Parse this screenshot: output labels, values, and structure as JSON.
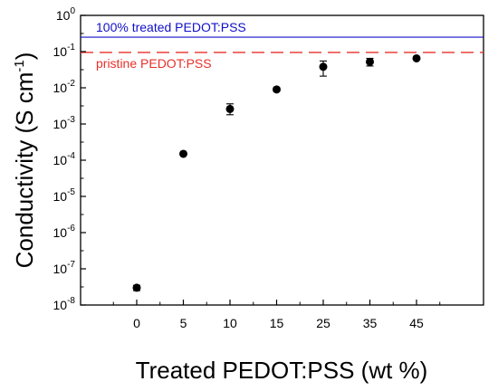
{
  "chart_data": {
    "type": "scatter",
    "title": "",
    "xlabel": "Treated PEDOT:PSS (wt %)",
    "ylabel": {
      "text": "Conductivity (S cm",
      "superscript": "-1",
      "close": ")"
    },
    "y_scale": "log",
    "ylim": [
      1e-08,
      1
    ],
    "categories": [
      "0",
      "5",
      "10",
      "15",
      "25",
      "35",
      "45"
    ],
    "series": [
      {
        "marker": "circle",
        "color": "#000000",
        "values": [
          3e-08,
          0.00015,
          0.0026,
          0.009,
          0.038,
          0.052,
          0.065
        ],
        "error_low": [
          2.5e-08,
          0.00014,
          0.0018,
          0.008,
          0.021,
          0.04,
          0.06
        ],
        "error_high": [
          3.5e-08,
          0.00016,
          0.0036,
          0.01,
          0.055,
          0.065,
          0.07
        ]
      }
    ],
    "reference_lines": [
      {
        "label": "100% treated PEDOT:PSS",
        "value": 0.25,
        "style": "solid",
        "color": "#1010c8"
      },
      {
        "label": "pristine PEDOT:PSS",
        "value": 0.095,
        "style": "dashed",
        "color": "#e8302a"
      }
    ],
    "y_ticks": [
      {
        "base": "10",
        "exp": "0",
        "value": 1
      },
      {
        "base": "10",
        "exp": "-1",
        "value": 0.1
      },
      {
        "base": "10",
        "exp": "-2",
        "value": 0.01
      },
      {
        "base": "10",
        "exp": "-3",
        "value": 0.001
      },
      {
        "base": "10",
        "exp": "-4",
        "value": 0.0001
      },
      {
        "base": "10",
        "exp": "-5",
        "value": 1e-05
      },
      {
        "base": "10",
        "exp": "-6",
        "value": 1e-06
      },
      {
        "base": "10",
        "exp": "-7",
        "value": 1e-07
      },
      {
        "base": "10",
        "exp": "-8",
        "value": 1e-08
      }
    ],
    "grid": false,
    "legend": "none"
  }
}
